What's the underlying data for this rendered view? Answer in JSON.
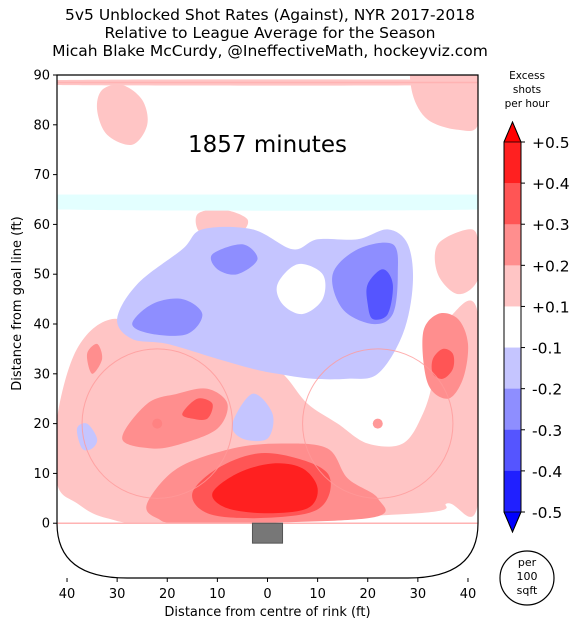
{
  "chart_data": {
    "type": "heatmap",
    "title_lines": [
      "5v5 Unblocked Shot Rates (Against), NYR 2017-2018",
      "Relative to League Average for the Season",
      "Micah Blake McCurdy, @IneffectiveMath, hockeyviz.com"
    ],
    "annotation": "1857 minutes",
    "xlabel": "Distance from centre of rink (ft)",
    "ylabel": "Distance from goal line (ft)",
    "x_ticks": [
      "40",
      "30",
      "20",
      "10",
      "0",
      "10",
      "20",
      "30",
      "40"
    ],
    "y_ticks": [
      "0",
      "10",
      "20",
      "30",
      "40",
      "50",
      "60",
      "70",
      "80",
      "90"
    ],
    "xlim": [
      -42,
      42
    ],
    "ylim": [
      -11,
      90
    ],
    "grid": false,
    "colorbar": {
      "title_lines": [
        "Excess",
        "shots",
        "per hour"
      ],
      "tick_labels": [
        "+0.5",
        "+0.4",
        "+0.3",
        "+0.2",
        "+0.1",
        "-0.1",
        "-0.2",
        "-0.3",
        "-0.4",
        "-0.5"
      ],
      "levels": [
        {
          "from": 0.4,
          "to": 0.5,
          "color": "#ff2020"
        },
        {
          "from": 0.3,
          "to": 0.4,
          "color": "#ff5555"
        },
        {
          "from": 0.2,
          "to": 0.3,
          "color": "#ff8e8e"
        },
        {
          "from": 0.1,
          "to": 0.2,
          "color": "#ffc5c5"
        },
        {
          "from": -0.1,
          "to": 0.1,
          "color": "#ffffff"
        },
        {
          "from": -0.2,
          "to": -0.1,
          "color": "#c5c5ff"
        },
        {
          "from": -0.3,
          "to": -0.2,
          "color": "#8e8eff"
        },
        {
          "from": -0.4,
          "to": -0.3,
          "color": "#5555ff"
        },
        {
          "from": -0.5,
          "to": -0.4,
          "color": "#2020ff"
        }
      ],
      "extend_colors": {
        "max": "#ff0000",
        "min": "#0000ff"
      }
    },
    "unit_note_lines": [
      "per",
      "100",
      "sqft"
    ],
    "regions": [
      {
        "level": 0.15,
        "points": [
          [
            -42,
            21
          ],
          [
            -38,
            35
          ],
          [
            -31,
            41
          ],
          [
            -22,
            38
          ],
          [
            -12,
            37
          ],
          [
            -5,
            35
          ],
          [
            0,
            33
          ],
          [
            4,
            29
          ],
          [
            8,
            24
          ],
          [
            14,
            20
          ],
          [
            20,
            16
          ],
          [
            27,
            16
          ],
          [
            31,
            22
          ],
          [
            33,
            29
          ],
          [
            33,
            36
          ],
          [
            36,
            41
          ],
          [
            42,
            42
          ],
          [
            42,
            4
          ],
          [
            36,
            4
          ],
          [
            30,
            2
          ],
          [
            -20,
            0
          ],
          [
            -32,
            1
          ],
          [
            -38,
            4
          ],
          [
            -42,
            8
          ]
        ]
      },
      {
        "level": 0.15,
        "points": [
          [
            -14,
            62
          ],
          [
            -9,
            63
          ],
          [
            -4,
            61
          ],
          [
            -6,
            58
          ],
          [
            -13,
            58
          ]
        ]
      },
      {
        "level": 0.15,
        "points": [
          [
            34,
            56
          ],
          [
            40,
            59
          ],
          [
            42,
            57
          ],
          [
            42,
            49
          ],
          [
            38,
            46
          ],
          [
            34,
            50
          ]
        ]
      },
      {
        "level": 0.15,
        "points": [
          [
            -33,
            87
          ],
          [
            -29,
            88
          ],
          [
            -25,
            85
          ],
          [
            -24,
            80
          ],
          [
            -27,
            76
          ],
          [
            -32,
            78
          ],
          [
            -34,
            83
          ]
        ]
      },
      {
        "level": 0.15,
        "points": [
          [
            29,
            92
          ],
          [
            35,
            90
          ],
          [
            42,
            90
          ],
          [
            42,
            80
          ],
          [
            38,
            79
          ],
          [
            32,
            81
          ],
          [
            29,
            86
          ]
        ]
      },
      {
        "level": 0.15,
        "points": [
          [
            -42,
            89
          ],
          [
            42,
            89
          ],
          [
            42,
            88
          ],
          [
            -42,
            88
          ]
        ]
      },
      {
        "level": 0.25,
        "points": [
          [
            -29,
            17
          ],
          [
            -24,
            24
          ],
          [
            -18,
            26
          ],
          [
            -12,
            27
          ],
          [
            -8,
            24
          ],
          [
            -10,
            19
          ],
          [
            -17,
            16
          ],
          [
            -23,
            15
          ]
        ]
      },
      {
        "level": 0.25,
        "points": [
          [
            -36,
            34
          ],
          [
            -34,
            36
          ],
          [
            -33,
            33
          ],
          [
            -35,
            30
          ]
        ]
      },
      {
        "level": 0.25,
        "points": [
          [
            31,
            38
          ],
          [
            34,
            42
          ],
          [
            38,
            41
          ],
          [
            40,
            36
          ],
          [
            39,
            29
          ],
          [
            36,
            25
          ],
          [
            32,
            28
          ]
        ]
      },
      {
        "level": 0.25,
        "points": [
          [
            -24,
            4
          ],
          [
            -18,
            11
          ],
          [
            -7,
            15
          ],
          [
            3,
            16
          ],
          [
            12,
            15
          ],
          [
            16,
            9
          ],
          [
            22,
            5
          ],
          [
            20,
            1
          ],
          [
            -15,
            0
          ],
          [
            -22,
            1
          ]
        ]
      },
      {
        "level": 0.35,
        "points": [
          [
            -17,
            22
          ],
          [
            -14,
            25
          ],
          [
            -11,
            24
          ],
          [
            -12,
            21
          ],
          [
            -15,
            21
          ]
        ]
      },
      {
        "level": 0.35,
        "points": [
          [
            33,
            33
          ],
          [
            35,
            35
          ],
          [
            37,
            34
          ],
          [
            37,
            31
          ],
          [
            35,
            29
          ],
          [
            33,
            30
          ]
        ]
      },
      {
        "level": 0.35,
        "points": [
          [
            -15,
            6
          ],
          [
            -10,
            11
          ],
          [
            -2,
            14
          ],
          [
            6,
            13
          ],
          [
            12,
            10
          ],
          [
            12,
            5
          ],
          [
            8,
            2
          ],
          [
            -3,
            1
          ],
          [
            -12,
            2
          ]
        ]
      },
      {
        "level": 0.45,
        "points": [
          [
            -11,
            6
          ],
          [
            -6,
            10
          ],
          [
            1,
            12
          ],
          [
            7,
            11
          ],
          [
            10,
            7
          ],
          [
            8,
            3
          ],
          [
            0,
            2
          ],
          [
            -8,
            3
          ]
        ]
      },
      {
        "level": -0.15,
        "points": [
          [
            -30,
            41
          ],
          [
            -26,
            48
          ],
          [
            -17,
            55
          ],
          [
            -13,
            59
          ],
          [
            -3,
            59
          ],
          [
            5,
            55
          ],
          [
            10,
            57
          ],
          [
            18,
            57
          ],
          [
            24,
            59
          ],
          [
            28,
            56
          ],
          [
            29,
            48
          ],
          [
            27,
            38
          ],
          [
            22,
            30
          ],
          [
            16,
            29
          ],
          [
            9,
            29
          ],
          [
            2,
            30
          ],
          [
            -3,
            31
          ],
          [
            -10,
            33
          ],
          [
            -20,
            36
          ],
          [
            -27,
            37
          ]
        ]
      },
      {
        "level": -0.15,
        "points": [
          [
            -38,
            19
          ],
          [
            -37,
            15
          ],
          [
            -35,
            15
          ],
          [
            -34,
            17
          ],
          [
            -36,
            20
          ]
        ]
      },
      {
        "level": -0.15,
        "points": [
          [
            -7,
            20
          ],
          [
            -3,
            26
          ],
          [
            1,
            22
          ],
          [
            0,
            17
          ],
          [
            -5,
            17
          ]
        ]
      },
      {
        "level": -0.25,
        "points": [
          [
            -27,
            40
          ],
          [
            -23,
            44
          ],
          [
            -17,
            45
          ],
          [
            -13,
            42
          ],
          [
            -16,
            38
          ],
          [
            -23,
            38
          ]
        ]
      },
      {
        "level": -0.25,
        "points": [
          [
            -11,
            54
          ],
          [
            -5,
            56
          ],
          [
            -2,
            53
          ],
          [
            -6,
            50
          ],
          [
            -10,
            51
          ]
        ]
      },
      {
        "level": -0.25,
        "points": [
          [
            13,
            50
          ],
          [
            18,
            55
          ],
          [
            25,
            56
          ],
          [
            26,
            50
          ],
          [
            25,
            42
          ],
          [
            21,
            40
          ],
          [
            15,
            43
          ]
        ]
      },
      {
        "level": -0.35,
        "points": [
          [
            20,
            48
          ],
          [
            23,
            51
          ],
          [
            25,
            48
          ],
          [
            24,
            42
          ],
          [
            21,
            41
          ],
          [
            20,
            44
          ]
        ]
      }
    ],
    "holes": [
      {
        "points": [
          [
            2,
            48
          ],
          [
            6,
            52
          ],
          [
            11,
            50
          ],
          [
            11,
            45
          ],
          [
            7,
            42
          ],
          [
            3,
            44
          ]
        ]
      },
      {
        "points": [
          [
            -40,
            65
          ],
          [
            42,
            65
          ],
          [
            42,
            63
          ],
          [
            -40,
            63
          ]
        ]
      }
    ],
    "cyan_band": {
      "y_from": 63,
      "y_to": 66,
      "color": "#e3ffff"
    },
    "faceoff_circles": [
      {
        "x": -22,
        "y": 20
      },
      {
        "x": 22,
        "y": 20
      }
    ],
    "faceoff_radius": 15,
    "net": {
      "x_from": -3,
      "x_to": 3,
      "y_from": -4,
      "y_to": 0,
      "color": "#777777"
    }
  }
}
